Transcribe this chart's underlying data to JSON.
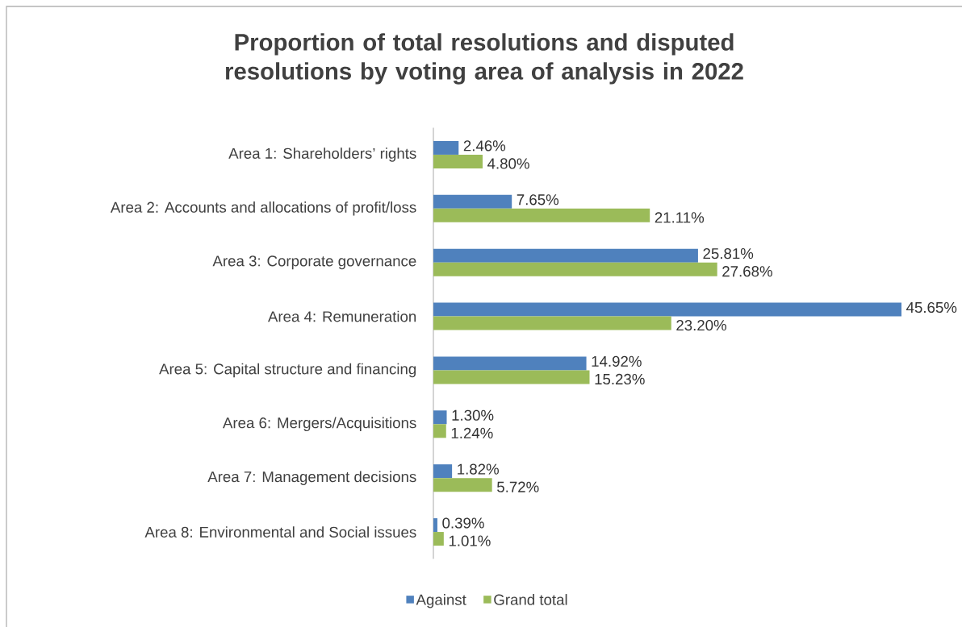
{
  "chart_data": {
    "type": "bar",
    "orientation": "horizontal",
    "title": "Proportion of total resolutions and disputed resolutions by voting area of analysis in 2022",
    "categories": [
      "Area 1: Shareholders’ rights",
      "Area 2: Accounts and allocations of profit/loss",
      "Area 3: Corporate governance",
      "Area 4: Remuneration",
      "Area 5: Capital structure and financing",
      "Area 6: Mergers/Acquisitions",
      "Area 7: Management decisions",
      "Area 8: Environmental and Social issues"
    ],
    "series": [
      {
        "name": "Against",
        "color": "#4f81bd",
        "values": [
          2.46,
          7.65,
          25.81,
          45.65,
          14.92,
          1.3,
          1.82,
          0.39
        ],
        "value_labels": [
          "2.46%",
          "7.65%",
          "25.81%",
          "45.65%",
          "14.92%",
          "1.30%",
          "1.82%",
          "0.39%"
        ]
      },
      {
        "name": "Grand total",
        "color": "#9bbb59",
        "values": [
          4.8,
          21.11,
          27.68,
          23.2,
          15.23,
          1.24,
          5.72,
          1.01
        ],
        "value_labels": [
          "4.80%",
          "21.11%",
          "27.68%",
          "23.20%",
          "15.23%",
          "1.24%",
          "5.72%",
          "1.01%"
        ]
      }
    ],
    "tick_labels": "y",
    "legend": "bottom",
    "grid": false
  }
}
